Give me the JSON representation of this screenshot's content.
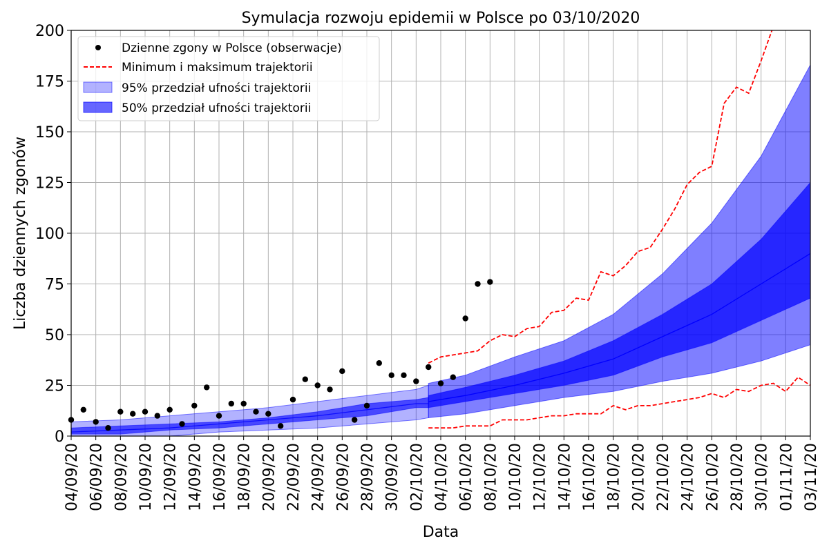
{
  "chart_data": {
    "type": "line",
    "title": "Symulacja rozwoju epidemii w Polsce po 03/10/2020",
    "xlabel": "Data",
    "ylabel": "Liczba dziennych zgonów",
    "ylim": [
      0,
      200
    ],
    "yticks": [
      0,
      25,
      50,
      75,
      100,
      125,
      150,
      175,
      200
    ],
    "x_start": "2020-09-04",
    "x_end": "2020-11-03",
    "xticks": [
      "04/09/20",
      "06/09/20",
      "08/09/20",
      "10/09/20",
      "12/09/20",
      "14/09/20",
      "16/09/20",
      "18/09/20",
      "20/09/20",
      "22/09/20",
      "24/09/20",
      "26/09/20",
      "28/09/20",
      "30/09/20",
      "02/10/20",
      "04/10/20",
      "06/10/20",
      "08/10/20",
      "10/10/20",
      "12/10/20",
      "14/10/20",
      "16/10/20",
      "18/10/20",
      "20/10/20",
      "22/10/20",
      "24/10/20",
      "26/10/20",
      "28/10/20",
      "30/10/20",
      "01/11/20",
      "03/11/20"
    ],
    "grid": true,
    "legend_position": "top-left",
    "legend": [
      {
        "label": "Dzienne zgony w Polsce (obserwacje)",
        "kind": "marker",
        "color": "#000000"
      },
      {
        "label": "Minimum i maksimum trajektorii",
        "kind": "dashed",
        "color": "#ff0000"
      },
      {
        "label": "95% przedział ufności trajektorii",
        "kind": "band",
        "color": "#0000ff",
        "opacity": 0.3
      },
      {
        "label": "50% przedział ufności trajektorii",
        "kind": "band",
        "color": "#0000ff",
        "opacity": 0.6
      }
    ],
    "observations": {
      "name": "Dzienne zgony w Polsce (obserwacje)",
      "dates": [
        "04/09/20",
        "05/09/20",
        "06/09/20",
        "07/09/20",
        "08/09/20",
        "09/09/20",
        "10/09/20",
        "11/09/20",
        "12/09/20",
        "13/09/20",
        "14/09/20",
        "15/09/20",
        "16/09/20",
        "17/09/20",
        "18/09/20",
        "19/09/20",
        "20/09/20",
        "21/09/20",
        "22/09/20",
        "23/09/20",
        "24/09/20",
        "25/09/20",
        "26/09/20",
        "27/09/20",
        "28/09/20",
        "29/09/20",
        "30/09/20",
        "01/10/20",
        "02/10/20",
        "03/10/20",
        "04/10/20",
        "05/10/20",
        "06/10/20",
        "07/10/20",
        "08/10/20"
      ],
      "values": [
        8,
        13,
        7,
        4,
        12,
        11,
        12,
        10,
        13,
        6,
        15,
        24,
        10,
        16,
        16,
        12,
        11,
        5,
        18,
        28,
        25,
        23,
        32,
        8,
        15,
        36,
        30,
        30,
        27,
        34,
        26,
        29,
        58,
        75,
        76
      ]
    },
    "band_95_pre": {
      "dates": [
        "04/09/20",
        "08/09/20",
        "12/09/20",
        "16/09/20",
        "20/09/20",
        "24/09/20",
        "28/09/20",
        "02/10/20",
        "03/10/20"
      ],
      "lower": [
        0,
        0,
        0,
        2,
        3,
        4,
        6,
        8,
        9
      ],
      "upper": [
        7,
        8,
        10,
        12,
        14,
        17,
        20,
        23,
        25
      ]
    },
    "band_50_pre": {
      "dates": [
        "04/09/20",
        "08/09/20",
        "12/09/20",
        "16/09/20",
        "20/09/20",
        "24/09/20",
        "28/09/20",
        "02/10/20",
        "03/10/20"
      ],
      "lower": [
        1,
        1,
        3,
        4,
        6,
        8,
        10,
        14,
        14
      ],
      "upper": [
        4,
        5,
        6,
        7,
        9,
        12,
        16,
        18,
        19
      ]
    },
    "median_pre": {
      "dates": [
        "04/09/20",
        "08/09/20",
        "12/09/20",
        "16/09/20",
        "20/09/20",
        "24/09/20",
        "28/09/20",
        "02/10/20",
        "03/10/20"
      ],
      "values": [
        2,
        3,
        4,
        6,
        8,
        10,
        13,
        16,
        16
      ]
    },
    "band_95_sim": {
      "dates": [
        "03/10/20",
        "06/10/20",
        "10/10/20",
        "14/10/20",
        "18/10/20",
        "22/10/20",
        "26/10/20",
        "30/10/20",
        "03/11/20"
      ],
      "lower": [
        9,
        11,
        15,
        19,
        22,
        27,
        31,
        37,
        45
      ],
      "upper": [
        26,
        30,
        39,
        47,
        60,
        80,
        105,
        138,
        183
      ]
    },
    "band_50_sim": {
      "dates": [
        "03/10/20",
        "06/10/20",
        "10/10/20",
        "14/10/20",
        "18/10/20",
        "22/10/20",
        "26/10/20",
        "30/10/20",
        "03/11/20"
      ],
      "lower": [
        14,
        17,
        21,
        25,
        30,
        39,
        46,
        57,
        68
      ],
      "upper": [
        20,
        24,
        30,
        37,
        47,
        60,
        75,
        97,
        125
      ]
    },
    "median_sim": {
      "dates": [
        "03/10/20",
        "06/10/20",
        "10/10/20",
        "14/10/20",
        "18/10/20",
        "22/10/20",
        "26/10/20",
        "30/10/20",
        "03/11/20"
      ],
      "values": [
        17,
        20,
        25,
        31,
        38,
        49,
        60,
        75,
        90
      ]
    },
    "max_trajectory": {
      "name": "Minimum i maksimum trajektorii",
      "dates": [
        "03/10/20",
        "04/10/20",
        "05/10/20",
        "06/10/20",
        "07/10/20",
        "08/10/20",
        "09/10/20",
        "10/10/20",
        "11/10/20",
        "12/10/20",
        "13/10/20",
        "14/10/20",
        "15/10/20",
        "16/10/20",
        "17/10/20",
        "18/10/20",
        "19/10/20",
        "20/10/20",
        "21/10/20",
        "22/10/20",
        "23/10/20",
        "24/10/20",
        "25/10/20",
        "26/10/20",
        "27/10/20",
        "28/10/20",
        "29/10/20",
        "30/10/20",
        "31/10/20"
      ],
      "values": [
        36,
        39,
        40,
        41,
        42,
        47,
        50,
        49,
        53,
        54,
        61,
        62,
        68,
        67,
        81,
        79,
        84,
        91,
        93,
        102,
        112,
        124,
        130,
        133,
        164,
        172,
        169,
        185,
        202
      ]
    },
    "min_trajectory": {
      "dates": [
        "03/10/20",
        "04/10/20",
        "05/10/20",
        "06/10/20",
        "07/10/20",
        "08/10/20",
        "09/10/20",
        "10/10/20",
        "11/10/20",
        "12/10/20",
        "13/10/20",
        "14/10/20",
        "15/10/20",
        "16/10/20",
        "17/10/20",
        "18/10/20",
        "19/10/20",
        "20/10/20",
        "21/10/20",
        "22/10/20",
        "23/10/20",
        "24/10/20",
        "25/10/20",
        "26/10/20",
        "27/10/20",
        "28/10/20",
        "29/10/20",
        "30/10/20",
        "31/10/20",
        "01/11/20",
        "02/11/20",
        "03/11/20"
      ],
      "values": [
        4,
        4,
        4,
        5,
        5,
        5,
        8,
        8,
        8,
        9,
        10,
        10,
        11,
        11,
        11,
        15,
        13,
        15,
        15,
        16,
        17,
        18,
        19,
        21,
        19,
        23,
        22,
        25,
        26,
        22,
        29,
        25
      ]
    }
  }
}
